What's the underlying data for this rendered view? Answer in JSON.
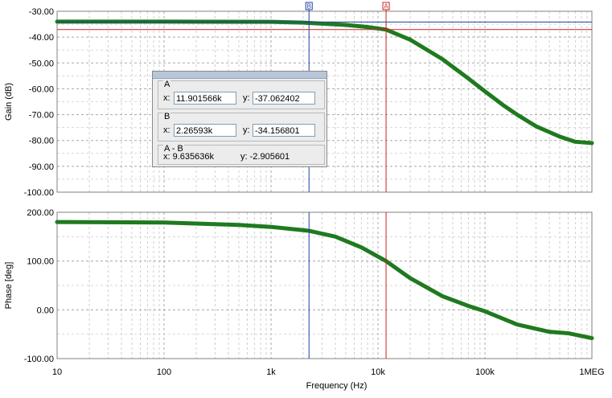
{
  "chart_data": [
    {
      "type": "line",
      "panel": "gain",
      "ylabel": "Gain (dB)",
      "xscale": "log",
      "xlim": [
        10,
        1000000
      ],
      "ylim": [
        -100,
        -30
      ],
      "yticks": [
        -30,
        -40,
        -50,
        -60,
        -70,
        -80,
        -90,
        -100
      ],
      "ytick_labels": [
        "-30.00",
        "-40.00",
        "-50.00",
        "-60.00",
        "-70.00",
        "-80.00",
        "-90.00",
        "-100.00"
      ],
      "grid": true,
      "series": [
        {
          "color": "#1f7a1f",
          "x": [
            10,
            100,
            1000,
            2000,
            5000,
            8000,
            11900,
            20000,
            40000,
            70000,
            100000,
            150000,
            200000,
            300000,
            500000,
            700000,
            1000000
          ],
          "y": [
            -34,
            -34,
            -34.1,
            -34.4,
            -35.3,
            -36.1,
            -37.1,
            -41,
            -48.5,
            -56,
            -61,
            -66.5,
            -70,
            -74.5,
            -78.5,
            -80.5,
            -81
          ]
        }
      ]
    },
    {
      "type": "line",
      "panel": "phase",
      "ylabel": "Phase [deg]",
      "xlabel": "Frequency (Hz)",
      "xscale": "log",
      "xlim": [
        10,
        1000000
      ],
      "ylim": [
        -100,
        200
      ],
      "yticks": [
        200,
        100,
        0,
        -100
      ],
      "ytick_labels": [
        "200.00",
        "100.00",
        "0.00",
        "-100.00"
      ],
      "xticks": [
        10,
        100,
        1000,
        10000,
        100000,
        1000000
      ],
      "xtick_labels": [
        "10",
        "100",
        "1k",
        "10k",
        "100k",
        "1MEG"
      ],
      "grid": true,
      "series": [
        {
          "color": "#1f7a1f",
          "x": [
            10,
            100,
            500,
            1000,
            2265,
            4000,
            7000,
            11900,
            20000,
            40000,
            70000,
            100000,
            200000,
            400000,
            600000,
            1000000
          ],
          "y": [
            180,
            179,
            174,
            170,
            162,
            150,
            128,
            100,
            65,
            28,
            8,
            -3,
            -30,
            -45,
            -48,
            -58
          ]
        }
      ]
    }
  ],
  "cursors": {
    "a": {
      "label": "A",
      "x": 11901.566,
      "color": "#cc2222",
      "marker": "A"
    },
    "b": {
      "label": "B",
      "x": 2265.93,
      "color": "#1f3fa0",
      "marker": "B"
    },
    "gain_a_y": -37.062402,
    "gain_b_y": -34.156801
  },
  "cursor_box": {
    "a": {
      "title": "A",
      "x_label": "x:",
      "x_value": "11.901566k",
      "y_label": "y:",
      "y_value": "-37.062402"
    },
    "b": {
      "title": "B",
      "x_label": "x:",
      "x_value": "2.26593k",
      "y_label": "y:",
      "y_value": "-34.156801"
    },
    "ab": {
      "title": "A - B",
      "x_label": "x:",
      "x_value": "9.635636k",
      "y_label": "y:",
      "y_value": "-2.905601"
    }
  }
}
